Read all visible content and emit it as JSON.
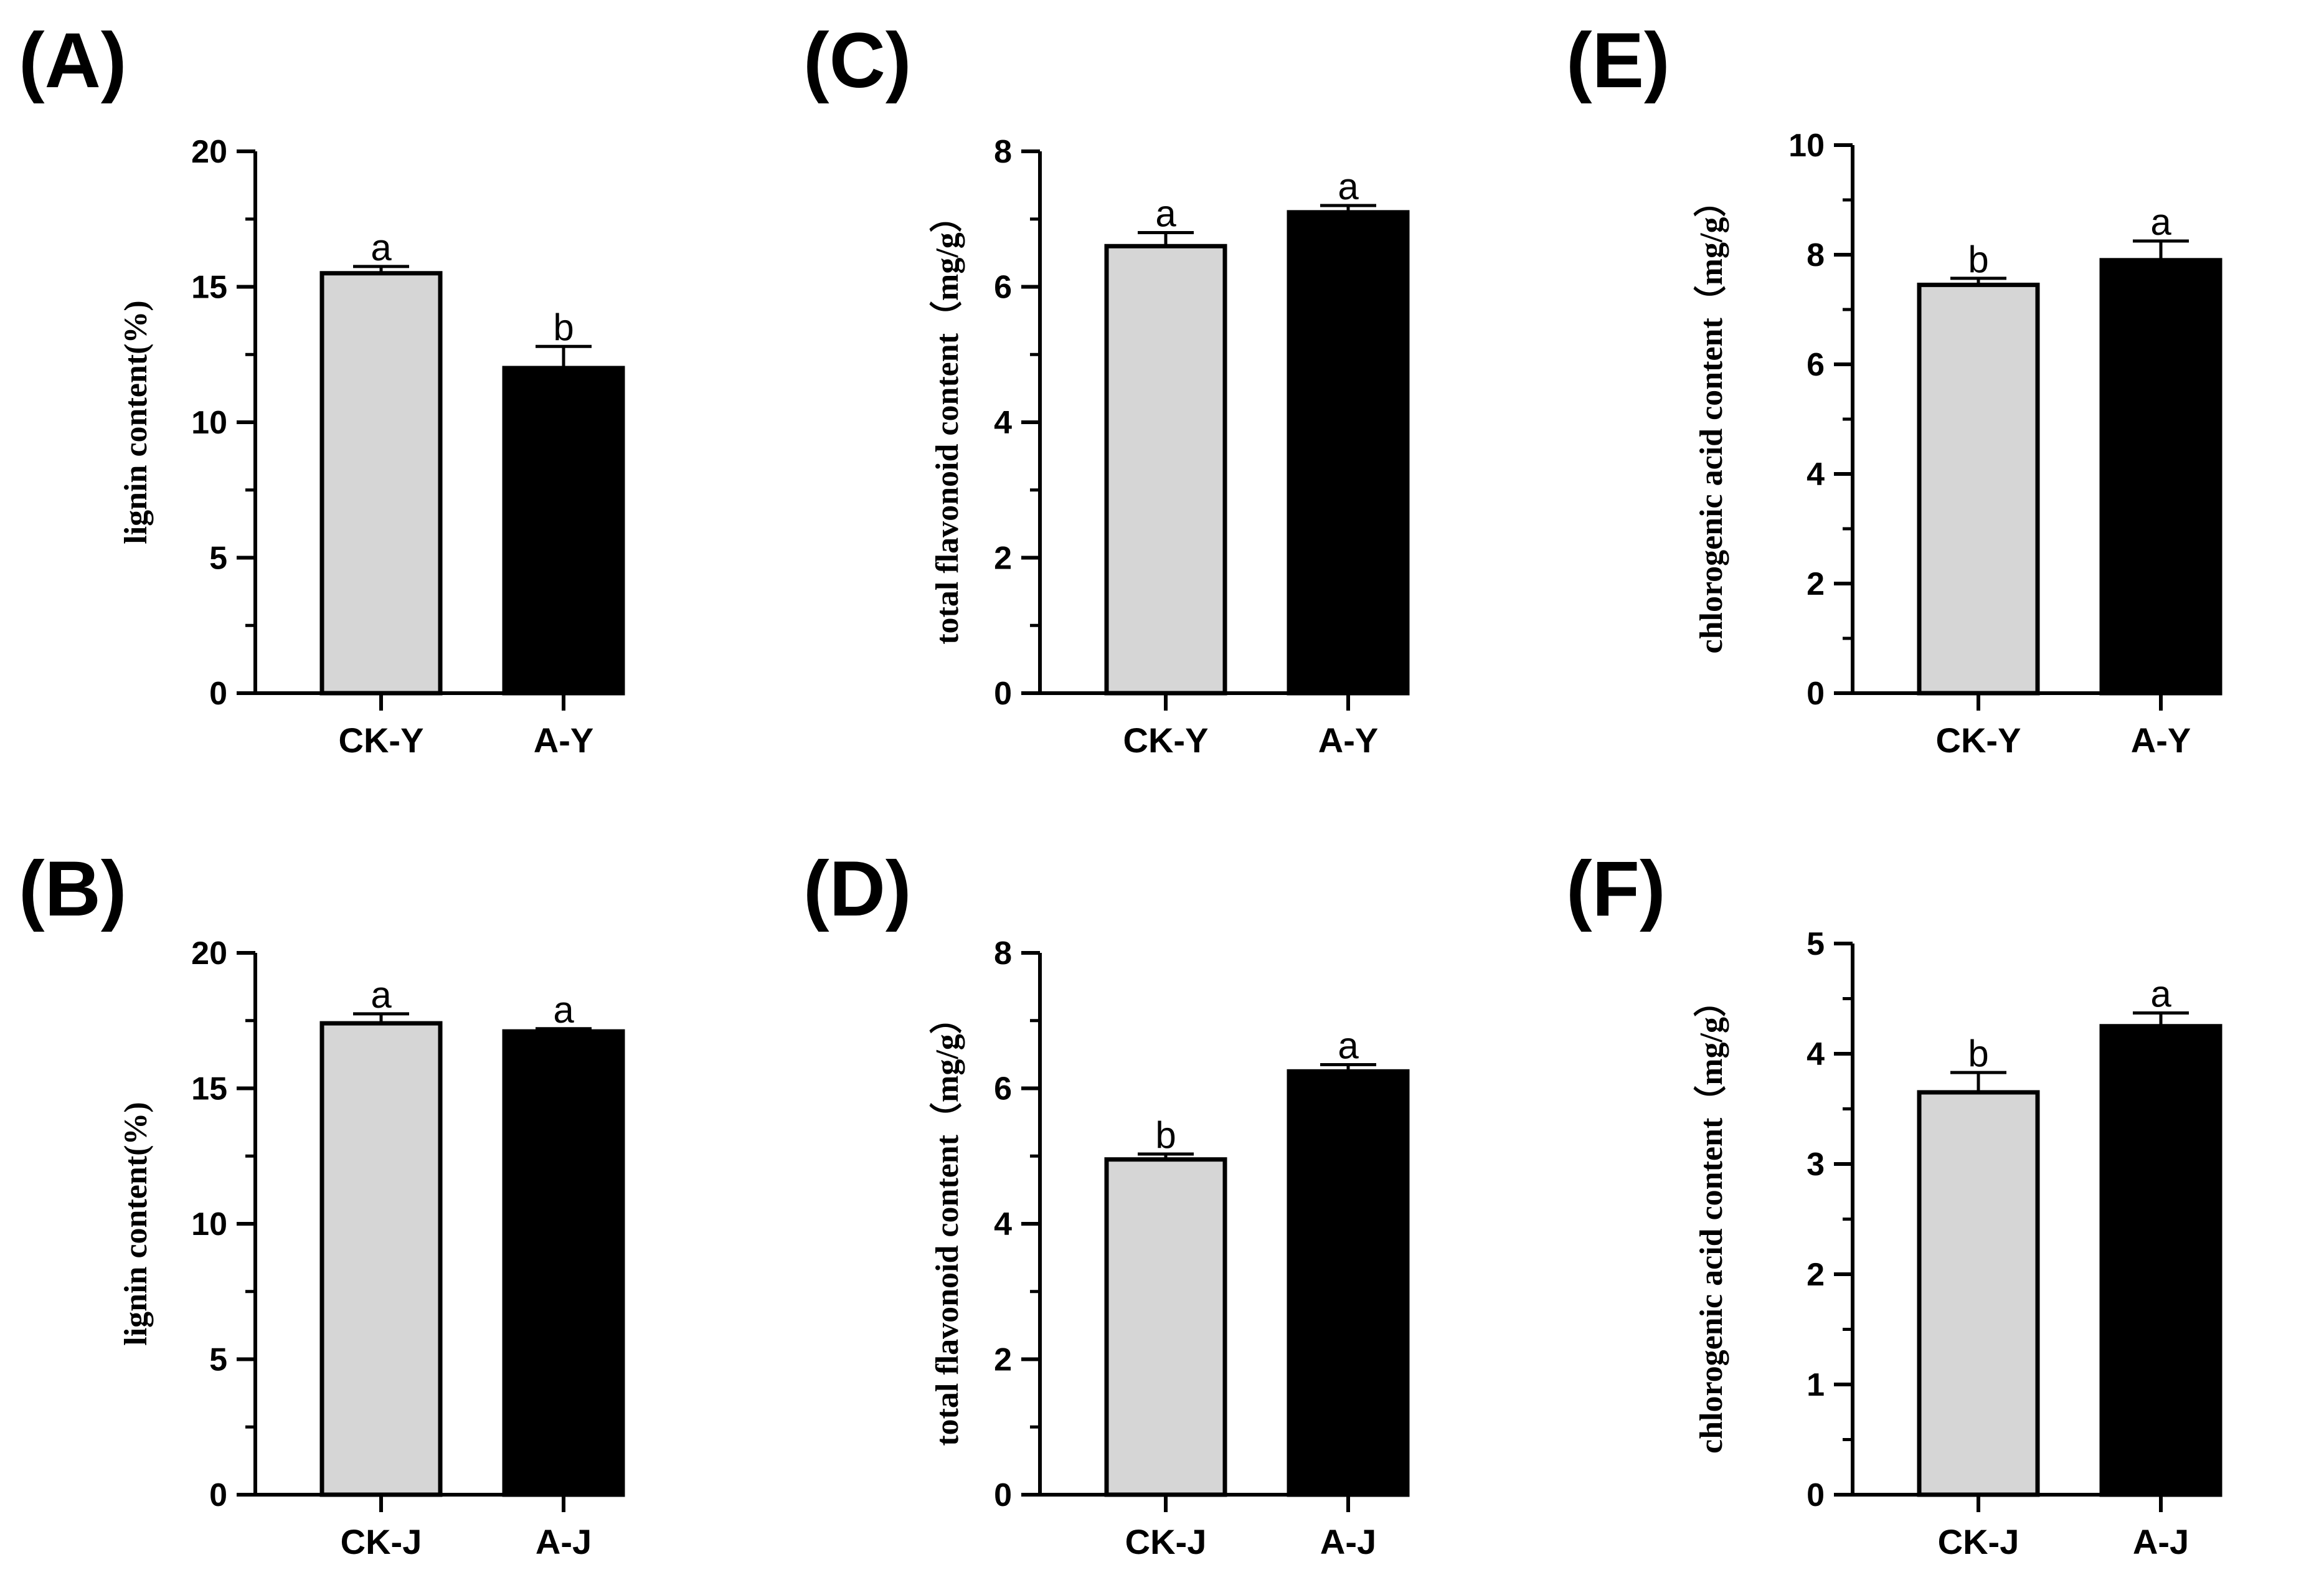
{
  "bar_colors": [
    "#d6d6d6",
    "#000000"
  ],
  "chart_data": [
    {
      "type": "bar",
      "panel": "(A)",
      "ylabel": "lignin content(%)",
      "ylim": [
        0,
        20
      ],
      "ticks": [
        0,
        5,
        10,
        15,
        20
      ],
      "categories": [
        "CK-Y",
        "A-Y"
      ],
      "values": [
        15.5,
        12.0
      ],
      "errors": [
        0.25,
        0.8
      ],
      "significance": [
        "a",
        "b"
      ]
    },
    {
      "type": "bar",
      "panel": "(B)",
      "ylabel": "lignin content(%)",
      "ylim": [
        0,
        20
      ],
      "ticks": [
        0,
        5,
        10,
        15,
        20
      ],
      "categories": [
        "CK-J",
        "A-J"
      ],
      "values": [
        17.4,
        17.1
      ],
      "errors": [
        0.35,
        0.1
      ],
      "significance": [
        "a",
        "a"
      ]
    },
    {
      "type": "bar",
      "panel": "(C)",
      "ylabel": "total flavonoid content（mg/g）",
      "ylim": [
        0,
        8
      ],
      "ticks": [
        0,
        2,
        4,
        6,
        8
      ],
      "categories": [
        "CK-Y",
        "A-Y"
      ],
      "values": [
        6.6,
        7.1
      ],
      "errors": [
        0.2,
        0.1
      ],
      "significance": [
        "a",
        "a"
      ]
    },
    {
      "type": "bar",
      "panel": "(D)",
      "ylabel": "total flavonoid content（mg/g）",
      "ylim": [
        0,
        8
      ],
      "ticks": [
        0,
        2,
        4,
        6,
        8
      ],
      "categories": [
        "CK-J",
        "A-J"
      ],
      "values": [
        4.95,
        6.25
      ],
      "errors": [
        0.08,
        0.1
      ],
      "significance": [
        "b",
        "a"
      ]
    },
    {
      "type": "bar",
      "panel": "(E)",
      "ylabel": "chlorogenic acid content（mg/g）",
      "ylim": [
        0,
        10
      ],
      "ticks": [
        0,
        2,
        4,
        6,
        8,
        10
      ],
      "categories": [
        "CK-Y",
        "A-Y"
      ],
      "values": [
        7.45,
        7.9
      ],
      "errors": [
        0.12,
        0.35
      ],
      "significance": [
        "b",
        "a"
      ]
    },
    {
      "type": "bar",
      "panel": "(F)",
      "ylabel": "chlorogenic acid content（mg/g）",
      "ylim": [
        0,
        5
      ],
      "ticks": [
        0,
        1,
        2,
        3,
        4,
        5
      ],
      "categories": [
        "CK-J",
        "A-J"
      ],
      "values": [
        3.65,
        4.25
      ],
      "errors": [
        0.18,
        0.12
      ],
      "significance": [
        "b",
        "a"
      ]
    }
  ]
}
